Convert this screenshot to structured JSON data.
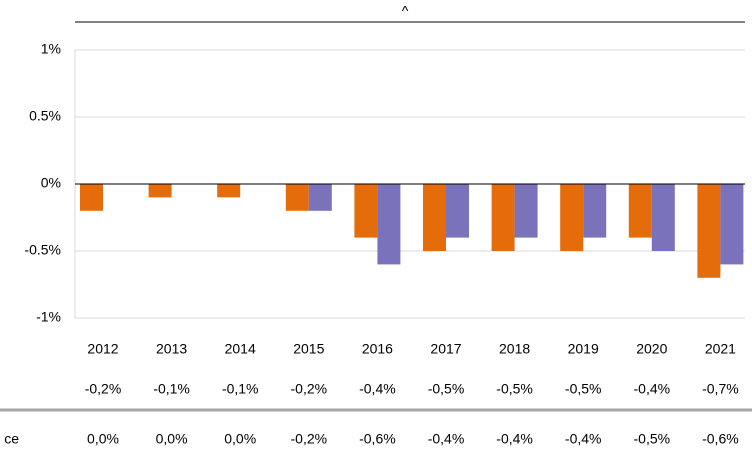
{
  "chart_data": {
    "type": "bar",
    "title": "^",
    "categories": [
      "2012",
      "2013",
      "2014",
      "2015",
      "2016",
      "2017",
      "2018",
      "2019",
      "2020",
      "2021"
    ],
    "series": [
      {
        "color": "#e46c0a",
        "values": [
          -0.2,
          -0.1,
          -0.1,
          -0.2,
          -0.4,
          -0.5,
          -0.5,
          -0.5,
          -0.4,
          -0.7
        ],
        "value_labels": [
          "-0,2%",
          "-0,1%",
          "-0,1%",
          "-0,2%",
          "-0,4%",
          "-0,5%",
          "-0,5%",
          "-0,5%",
          "-0,4%",
          "-0,7%"
        ]
      },
      {
        "name": "ce",
        "color": "#7a72ba",
        "values": [
          0.0,
          0.0,
          0.0,
          -0.2,
          -0.6,
          -0.4,
          -0.4,
          -0.4,
          -0.5,
          -0.6
        ],
        "value_labels": [
          "0,0%",
          "0,0%",
          "0,0%",
          "-0,2%",
          "-0,6%",
          "-0,4%",
          "-0,4%",
          "-0,4%",
          "-0,5%",
          "-0,6%"
        ]
      }
    ],
    "ylim": [
      -1,
      1
    ],
    "yticks": [
      {
        "value": -1,
        "label": "-1%"
      },
      {
        "value": -0.5,
        "label": "-0.5%"
      },
      {
        "value": 0,
        "label": "0%"
      },
      {
        "value": 0.5,
        "label": "0.5%"
      },
      {
        "value": 1,
        "label": "1%"
      }
    ],
    "grid": true
  }
}
